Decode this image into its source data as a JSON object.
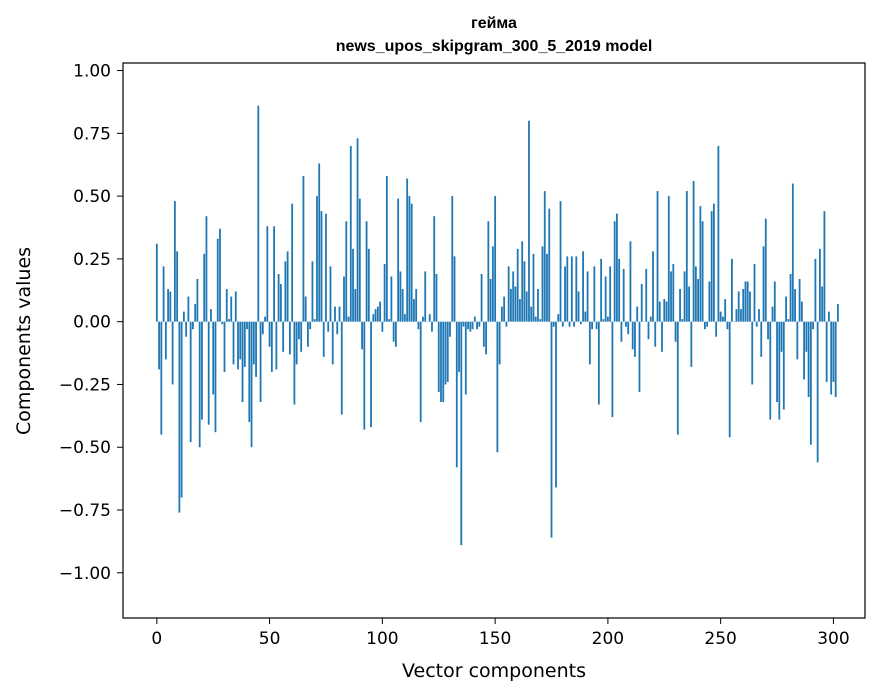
{
  "chart_data": {
    "type": "bar",
    "title_line1": "гейма",
    "title_line2": "news_upos_skipgram_300_5_2019 model",
    "xlabel": "Vector components",
    "ylabel": "Components values",
    "xlim": [
      -15,
      314
    ],
    "ylim": [
      -1.18,
      1.03
    ],
    "xticks": [
      0,
      50,
      100,
      150,
      200,
      250,
      300
    ],
    "yticks": [
      1.0,
      0.75,
      0.5,
      0.25,
      0.0,
      -0.25,
      -0.5,
      -0.75,
      -1.0
    ],
    "ytick_labels": [
      "1.00",
      "0.75",
      "0.50",
      "0.25",
      "0.00",
      "−0.25",
      "−0.50",
      "−0.75",
      "−1.00"
    ],
    "xtick_labels": [
      "0",
      "50",
      "100",
      "150",
      "200",
      "250",
      "300"
    ],
    "bar_color": "#1f77b4",
    "values": [
      0.31,
      -0.19,
      -0.45,
      0.22,
      -0.15,
      0.13,
      0.12,
      -0.25,
      0.48,
      0.28,
      -0.76,
      -0.7,
      0.04,
      -0.06,
      0.1,
      -0.48,
      -0.03,
      0.07,
      0.17,
      -0.5,
      -0.39,
      0.27,
      0.42,
      -0.41,
      0.05,
      -0.29,
      -0.44,
      0.33,
      0.37,
      -0.01,
      -0.2,
      0.13,
      0.01,
      0.1,
      -0.17,
      0.12,
      -0.19,
      -0.15,
      -0.32,
      -0.18,
      -0.03,
      -0.4,
      -0.5,
      -0.17,
      -0.22,
      0.86,
      -0.32,
      -0.05,
      0.02,
      0.38,
      -0.1,
      -0.2,
      0.38,
      -0.19,
      0.19,
      0.15,
      -0.12,
      0.24,
      0.28,
      -0.13,
      0.47,
      -0.33,
      -0.17,
      -0.07,
      -0.12,
      0.58,
      0.1,
      -0.1,
      -0.03,
      0.24,
      0.01,
      0.5,
      0.63,
      0.44,
      -0.14,
      0.43,
      -0.04,
      0.22,
      -0.17,
      0.06,
      -0.05,
      0.06,
      -0.37,
      0.18,
      0.4,
      0.02,
      0.7,
      0.29,
      0.13,
      0.73,
      0.49,
      -0.11,
      -0.43,
      0.4,
      0.29,
      -0.42,
      0.03,
      0.05,
      0.06,
      0.08,
      -0.04,
      0.23,
      0.58,
      0.01,
      0.18,
      -0.08,
      -0.1,
      0.49,
      0.2,
      0.13,
      0.03,
      0.57,
      0.5,
      0.47,
      0.09,
      0.13,
      -0.03,
      -0.4,
      0.02,
      0.2,
      0.0,
      0.03,
      -0.04,
      0.42,
      0.19,
      -0.28,
      -0.32,
      -0.32,
      -0.25,
      -0.24,
      -0.06,
      0.5,
      0.26,
      -0.58,
      -0.2,
      -0.89,
      -0.02,
      -0.29,
      -0.03,
      -0.04,
      -0.03,
      0.02,
      -0.03,
      -0.02,
      0.19,
      -0.1,
      -0.13,
      0.4,
      0.17,
      0.3,
      0.5,
      -0.52,
      -0.17,
      0.06,
      0.1,
      -0.02,
      0.22,
      0.13,
      0.2,
      0.14,
      0.29,
      0.09,
      0.32,
      0.24,
      0.12,
      0.8,
      0.06,
      0.27,
      0.02,
      0.13,
      0.01,
      0.3,
      0.52,
      0.27,
      0.45,
      -0.86,
      -0.02,
      -0.66,
      0.03,
      0.48,
      -0.02,
      0.22,
      0.26,
      -0.02,
      0.26,
      -0.02,
      0.26,
      0.12,
      -0.01,
      0.28,
      0.04,
      0.2,
      -0.17,
      -0.03,
      0.22,
      -0.03,
      -0.33,
      0.25,
      0.01,
      0.18,
      0.02,
      0.22,
      -0.38,
      0.4,
      0.43,
      0.25,
      -0.08,
      0.21,
      -0.02,
      -0.05,
      0.32,
      -0.11,
      -0.14,
      0.06,
      -0.28,
      0.15,
      0.0,
      0.21,
      -0.07,
      0.02,
      0.28,
      -0.1,
      0.52,
      0.08,
      -0.12,
      0.09,
      0.08,
      0.5,
      0.2,
      0.23,
      -0.08,
      -0.45,
      0.13,
      0.01,
      0.2,
      0.52,
      0.14,
      -0.18,
      0.56,
      0.22,
      0.17,
      0.46,
      0.4,
      -0.03,
      -0.02,
      0.16,
      0.44,
      0.47,
      -0.06,
      0.7,
      0.04,
      0.02,
      0.09,
      -0.03,
      -0.46,
      0.25,
      0.0,
      0.05,
      0.12,
      0.05,
      0.13,
      0.16,
      0.16,
      0.12,
      -0.25,
      0.23,
      -0.02,
      0.05,
      -0.14,
      0.3,
      0.41,
      -0.07,
      -0.39,
      0.06,
      0.16,
      -0.32,
      -0.39,
      -0.12,
      -0.35,
      0.1,
      0.01,
      0.19,
      0.55,
      0.13,
      -0.15,
      0.17,
      0.08,
      -0.23,
      -0.12,
      -0.3,
      -0.49,
      -0.03,
      0.25,
      -0.56,
      0.29,
      0.14,
      0.44,
      -0.24,
      0.04,
      -0.29,
      -0.24,
      -0.3,
      0.07
    ]
  }
}
